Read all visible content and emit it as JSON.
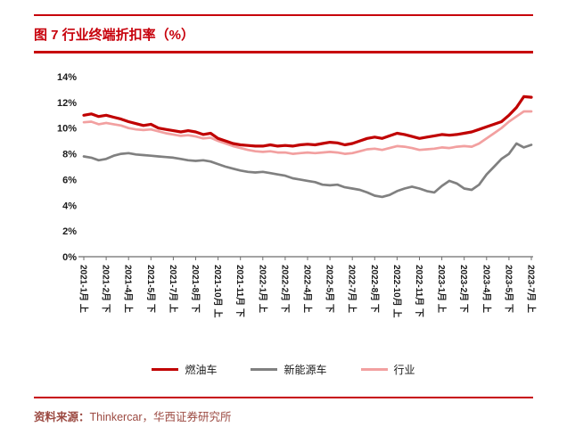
{
  "figure": {
    "title": "图 7 行业终端折扣率（%）"
  },
  "source": {
    "label": "资料来源：",
    "text": "Thinkercar，华西证券研究所"
  },
  "colors": {
    "accent_red": "#C7000B",
    "source_text": "#9C4A42",
    "axis": "#6E6E6E",
    "fuel_line": "#C00000",
    "nev_line": "#808080",
    "industry_line": "#F2A0A0"
  },
  "chart_data": {
    "type": "line",
    "title": "行业终端折扣率（%）",
    "xlabel": "",
    "ylabel": "",
    "ylim": [
      0,
      14
    ],
    "ytick_step": 2,
    "yticks": [
      "0%",
      "2%",
      "4%",
      "6%",
      "8%",
      "10%",
      "12%",
      "14%"
    ],
    "grid": false,
    "legend_position": "bottom",
    "n_points": 61,
    "x_tick_indices": [
      0,
      3,
      6,
      9,
      12,
      15,
      18,
      21,
      24,
      27,
      30,
      33,
      36,
      39,
      42,
      45,
      48,
      51,
      54,
      57,
      60
    ],
    "x_tick_labels": [
      "2021-1月 上",
      "2021-2月 下",
      "2021-4月 上",
      "2021-5月 下",
      "2021-7月 上",
      "2021-8月 下",
      "2021-10月 上",
      "2021-11月 下",
      "2022-1月 上",
      "2022-2月 下",
      "2022-4月 上",
      "2022-5月 下",
      "2022-7月 上",
      "2022-8月 下",
      "2022-10月 上",
      "2022-11月 下",
      "2023-1月 上",
      "2023-2月 下",
      "2023-4月 上",
      "2023-5月 下",
      "2023-7月 上"
    ],
    "series": [
      {
        "name": "燃油车",
        "slug": "fuel-vehicles",
        "color": "#C00000",
        "values": [
          11.0,
          11.1,
          10.9,
          11.0,
          10.85,
          10.7,
          10.5,
          10.35,
          10.2,
          10.3,
          10.0,
          9.9,
          9.8,
          9.7,
          9.8,
          9.7,
          9.5,
          9.6,
          9.2,
          9.0,
          8.8,
          8.7,
          8.65,
          8.6,
          8.6,
          8.7,
          8.6,
          8.65,
          8.6,
          8.7,
          8.75,
          8.7,
          8.8,
          8.9,
          8.85,
          8.7,
          8.8,
          9.0,
          9.2,
          9.3,
          9.2,
          9.4,
          9.6,
          9.5,
          9.35,
          9.2,
          9.3,
          9.4,
          9.5,
          9.45,
          9.5,
          9.6,
          9.7,
          9.9,
          10.1,
          10.3,
          10.5,
          11.0,
          11.6,
          12.45,
          12.4
        ]
      },
      {
        "name": "新能源车",
        "slug": "new-energy-vehicles",
        "color": "#808080",
        "values": [
          7.8,
          7.7,
          7.5,
          7.6,
          7.85,
          8.0,
          8.05,
          7.95,
          7.9,
          7.85,
          7.8,
          7.75,
          7.7,
          7.6,
          7.5,
          7.45,
          7.5,
          7.4,
          7.2,
          7.0,
          6.85,
          6.7,
          6.6,
          6.55,
          6.6,
          6.5,
          6.4,
          6.3,
          6.1,
          6.0,
          5.9,
          5.8,
          5.6,
          5.55,
          5.6,
          5.4,
          5.3,
          5.2,
          5.0,
          4.75,
          4.65,
          4.8,
          5.1,
          5.3,
          5.45,
          5.3,
          5.1,
          5.0,
          5.5,
          5.9,
          5.7,
          5.3,
          5.2,
          5.6,
          6.4,
          7.0,
          7.6,
          8.0,
          8.8,
          8.5,
          8.7
        ]
      },
      {
        "name": "行业",
        "slug": "industry",
        "color": "#F2A0A0",
        "values": [
          10.45,
          10.5,
          10.3,
          10.4,
          10.3,
          10.2,
          10.0,
          9.9,
          9.85,
          9.9,
          9.75,
          9.6,
          9.5,
          9.4,
          9.45,
          9.35,
          9.2,
          9.25,
          9.0,
          8.8,
          8.6,
          8.45,
          8.3,
          8.2,
          8.15,
          8.2,
          8.1,
          8.1,
          8.0,
          8.05,
          8.1,
          8.05,
          8.1,
          8.15,
          8.1,
          8.0,
          8.05,
          8.2,
          8.35,
          8.4,
          8.3,
          8.45,
          8.6,
          8.55,
          8.45,
          8.3,
          8.35,
          8.4,
          8.5,
          8.45,
          8.55,
          8.6,
          8.55,
          8.8,
          9.2,
          9.6,
          10.0,
          10.5,
          10.9,
          11.3,
          11.3
        ]
      }
    ]
  }
}
